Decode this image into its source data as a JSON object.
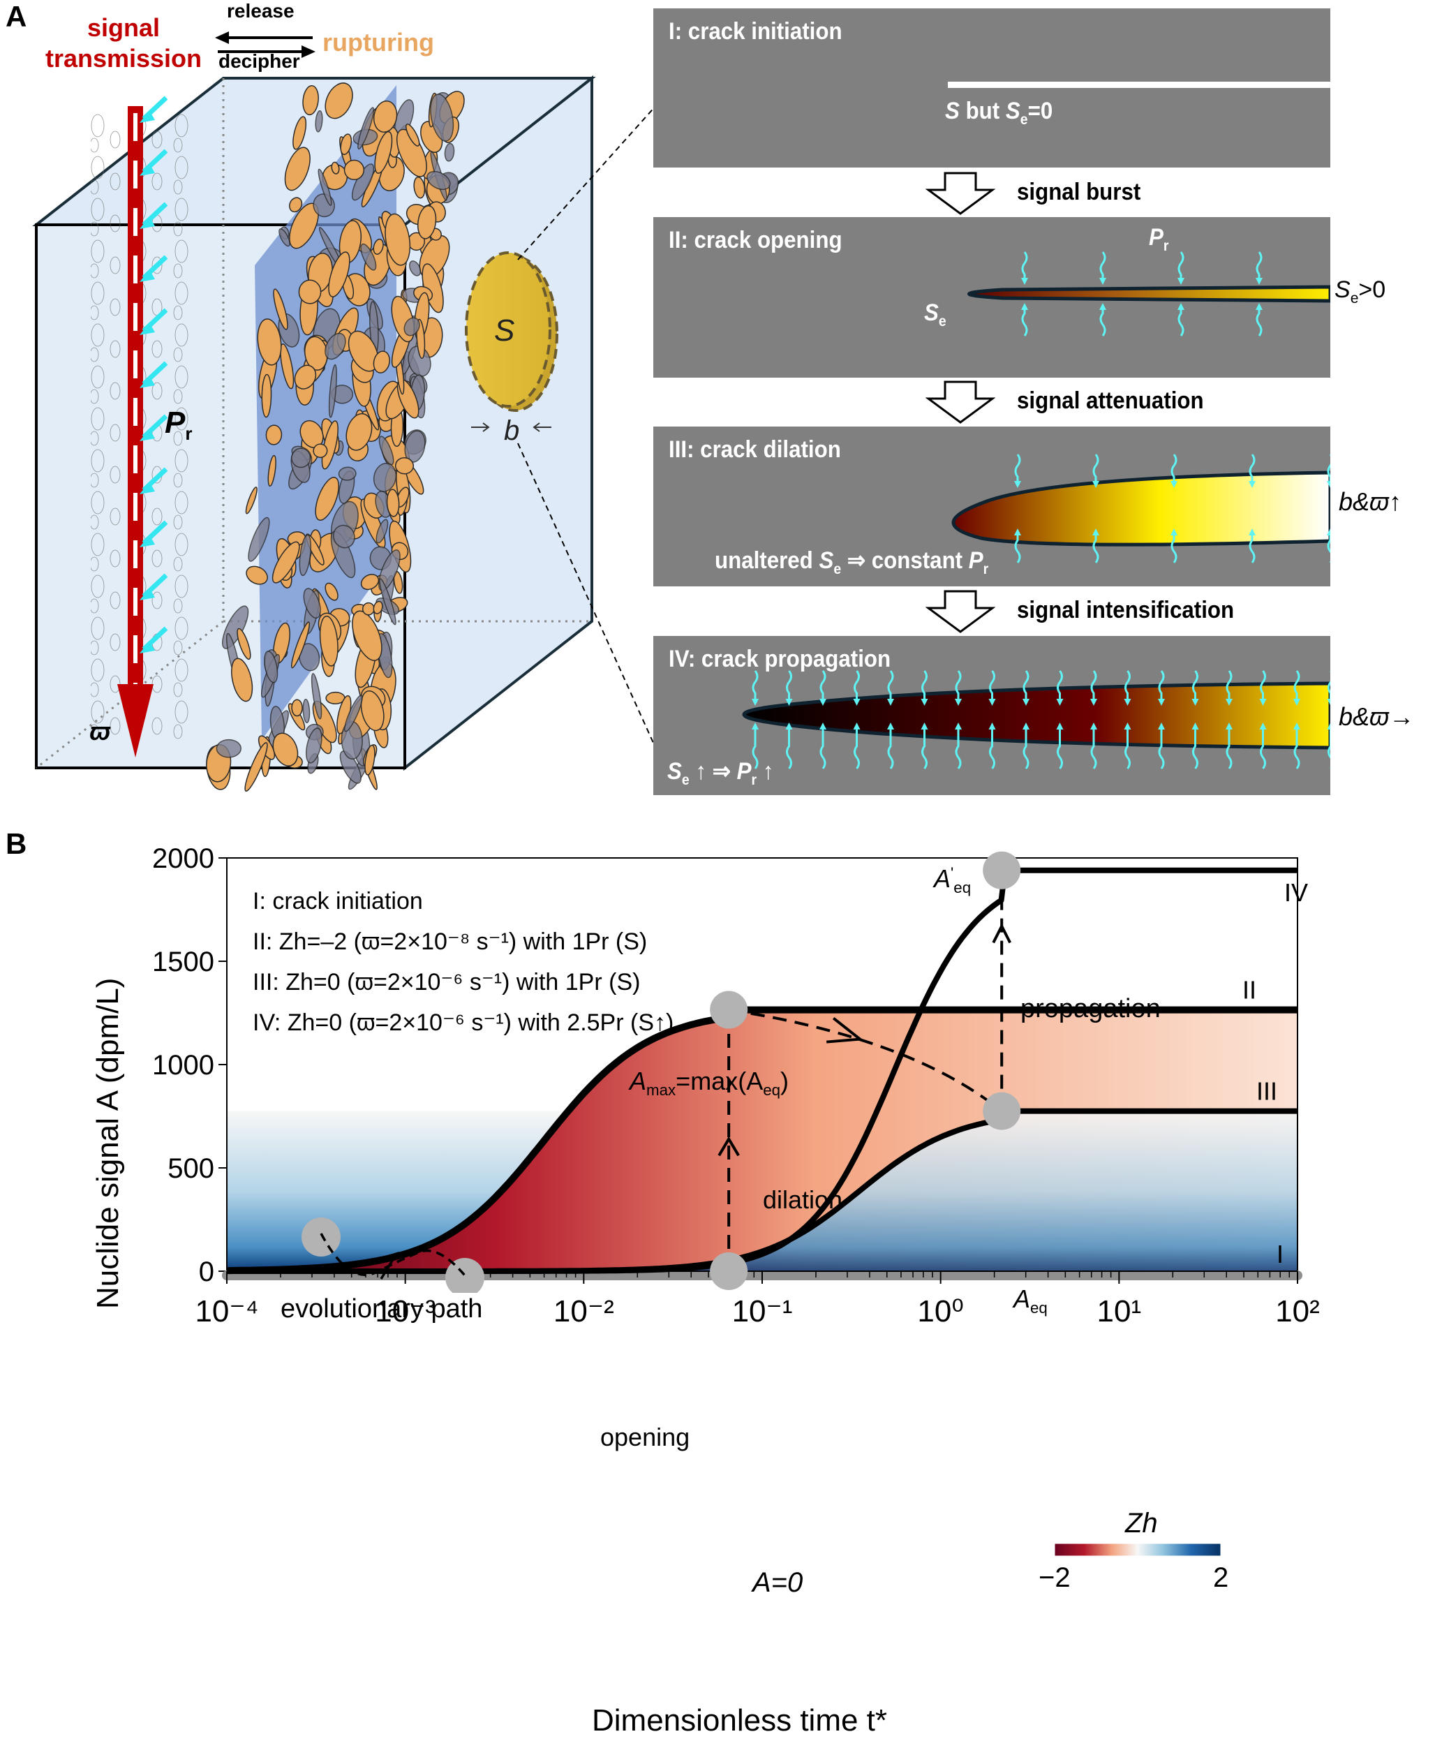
{
  "panel_a": {
    "letter": "A",
    "header": {
      "signal_line1": "signal",
      "signal_line2": "transmission",
      "release": "release",
      "decipher": "decipher",
      "rupturing": "rupturing"
    },
    "cube": {
      "pr_label": "P",
      "pr_sub": "r",
      "varpi_label": "ϖ",
      "disc_label": "S",
      "thickness_label": "b"
    },
    "stages": [
      {
        "title": "I: crack initiation",
        "note_main": "S",
        "note_mid": " but ",
        "note_s": "S",
        "note_sub": "e",
        "note_end": "=0"
      },
      {
        "title": "II: crack opening",
        "pr": "P",
        "pr_sub": "r",
        "se": "S",
        "se_sub": "e",
        "right": "S",
        "right_sub": "e",
        "right_end": ">0"
      },
      {
        "title": "III: crack dilation",
        "bottom_a": "unaltered ",
        "bottom_s": "S",
        "bottom_s_sub": "e",
        "bottom_b": " ⇒ constant ",
        "bottom_p": "P",
        "bottom_p_sub": "r",
        "right": "b&ϖ↑"
      },
      {
        "title": "IV: crack propagation",
        "bottom_s": "S",
        "bottom_s_sub": "e",
        "bottom_b": " ↑ ⇒ ",
        "bottom_p": "P",
        "bottom_p_sub": "r",
        "bottom_c": " ↑",
        "right": "b&ϖ→"
      }
    ],
    "transitions": [
      "signal burst",
      "signal attenuation",
      "signal intensification"
    ],
    "colors": {
      "box_gray": "#808080",
      "signal_red": "#c00000",
      "rupture_orange": "#e8a660",
      "cube_fill": "#deeaf7",
      "cyan": "#5ff3f3"
    }
  },
  "panel_b": {
    "letter": "B",
    "legend": [
      "I: crack initiation",
      "II: Zh=–2 (ϖ=2×10⁻⁸ s⁻¹) with 1Pr (S)",
      "III: Zh=0 (ϖ=2×10⁻⁶ s⁻¹) with 1Pr (S)",
      "IV: Zh=0 (ϖ=2×10⁻⁶ s⁻¹) with 2.5Pr (S↑)"
    ],
    "annotations": {
      "amax": "A",
      "amax_sub": "max",
      "amax_rest": "=max(A",
      "amax_eq": "eq",
      "aeq": "A",
      "aeq_sub": "eq",
      "aeq_prime": "A",
      "aeq_prime_sup": "'",
      "aeq_prime_sub": "eq",
      "a_zero": "A=0",
      "opening": "opening",
      "dilation": "dilation",
      "propagation": "propagation",
      "evolutionary_path": "evolutionary path",
      "colorbar_title": "Zh",
      "colorbar_min": "−2",
      "colorbar_max": "2"
    }
  },
  "chart_data": {
    "type": "line",
    "title": "",
    "xlabel": "Dimensionless time t*",
    "ylabel": "Nuclide signal A (dpm/L)",
    "xscale": "log",
    "xlim": [
      0.0001,
      100
    ],
    "ylim": [
      0,
      2000
    ],
    "x_ticks": [
      0.0001,
      0.001,
      0.01,
      0.1,
      1,
      10,
      100
    ],
    "x_tick_labels": [
      "10⁻⁴",
      "10⁻³",
      "10⁻²",
      "10⁻¹",
      "10⁰",
      "10¹",
      "10²"
    ],
    "y_ticks": [
      0,
      500,
      1000,
      1500,
      2000
    ],
    "y_tick_labels": [
      "0",
      "500",
      "1000",
      "1500",
      "2000"
    ],
    "series": [
      {
        "name": "I",
        "label": "I",
        "plateau": 0,
        "t_half": null,
        "points": [
          [
            0.0001,
            0
          ],
          [
            100,
            0
          ]
        ]
      },
      {
        "name": "II",
        "label": "II",
        "plateau": 1265,
        "points": [
          [
            0.0001,
            10
          ],
          [
            0.001,
            150
          ],
          [
            0.003,
            450
          ],
          [
            0.01,
            950
          ],
          [
            0.03,
            1230
          ],
          [
            0.065,
            1265
          ],
          [
            100,
            1265
          ]
        ]
      },
      {
        "name": "III",
        "label": "III",
        "plateau": 775,
        "points": [
          [
            0.0001,
            0
          ],
          [
            0.01,
            10
          ],
          [
            0.05,
            60
          ],
          [
            0.1,
            150
          ],
          [
            0.3,
            430
          ],
          [
            1,
            740
          ],
          [
            2.2,
            775
          ],
          [
            100,
            775
          ]
        ]
      },
      {
        "name": "IV",
        "label": "IV",
        "plateau": 1940,
        "points": [
          [
            0.0001,
            0
          ],
          [
            0.01,
            12
          ],
          [
            0.05,
            110
          ],
          [
            0.1,
            280
          ],
          [
            0.3,
            900
          ],
          [
            0.7,
            1500
          ],
          [
            1.2,
            1800
          ],
          [
            2.2,
            1940
          ],
          [
            100,
            1940
          ]
        ]
      }
    ],
    "markers": [
      {
        "name": "A_max",
        "t": 0.065,
        "A": 1265
      },
      {
        "name": "A_eq",
        "t": 2.2,
        "A": 775
      },
      {
        "name": "A'_eq",
        "t": 2.2,
        "A": 1940
      },
      {
        "name": "A=0",
        "t": 0.065,
        "A": 0
      }
    ],
    "colorbar": {
      "label": "Zh",
      "min": -2,
      "max": 2,
      "colors": [
        "#67001f",
        "#b2182b",
        "#f4a582",
        "#f7f7f7",
        "#92c5de",
        "#2166ac",
        "#053061"
      ]
    }
  }
}
